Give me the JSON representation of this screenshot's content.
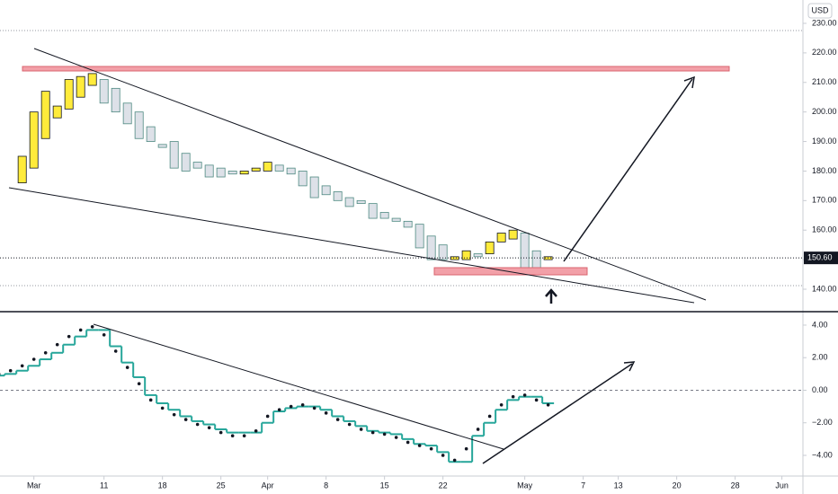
{
  "chart_data": [
    {
      "type": "candlestick",
      "currency": "USD",
      "x": [
        -1,
        0,
        1,
        2,
        3,
        4,
        5,
        6,
        7,
        8,
        9,
        10,
        11,
        12,
        13,
        14,
        15,
        16,
        17,
        18,
        19,
        20,
        21,
        22,
        23,
        24,
        25,
        26,
        27,
        28,
        29,
        30,
        31,
        32,
        33,
        34,
        35,
        36,
        37,
        38,
        39,
        40,
        41,
        42,
        43,
        44
      ],
      "open": [
        176,
        181,
        191,
        198,
        201,
        205,
        209,
        211,
        208,
        203,
        200,
        195,
        189,
        190,
        186,
        183,
        182,
        181,
        180,
        179,
        180,
        180,
        182,
        181,
        180,
        178,
        175,
        173,
        171,
        170,
        169,
        166,
        164,
        163,
        162,
        158,
        155,
        150,
        150,
        152,
        152,
        156,
        157,
        159,
        153,
        150
      ],
      "close": [
        185,
        200,
        207,
        202,
        211,
        212,
        213,
        203,
        200,
        196,
        191,
        190,
        188,
        181,
        180,
        181,
        178,
        178,
        179,
        180,
        181,
        183,
        180,
        179,
        175,
        171,
        172,
        170,
        168,
        169,
        164,
        164,
        163,
        161,
        154,
        150,
        150,
        151,
        153,
        151,
        156,
        159,
        160,
        147,
        147,
        151
      ],
      "up_color": "#ffeb3b",
      "down_color": "#4f8a82",
      "ylim": [
        132.4,
        237.9
      ],
      "yticks": [
        {
          "value": 140,
          "label": "140.00"
        },
        {
          "value": 150,
          "label": "150.00"
        },
        {
          "value": 160,
          "label": "160.00"
        },
        {
          "value": 170,
          "label": "170.00"
        },
        {
          "value": 180,
          "label": "180.00"
        },
        {
          "value": 190,
          "label": "190.00"
        },
        {
          "value": 200,
          "label": "200.00"
        },
        {
          "value": 210,
          "label": "210.00"
        },
        {
          "value": 220,
          "label": "220.00"
        },
        {
          "value": 230,
          "label": "230.00"
        }
      ],
      "xlim": [
        -2.9,
        65.8
      ],
      "xticks": [
        {
          "value": 0,
          "label": "Mar"
        },
        {
          "value": 6,
          "label": "11"
        },
        {
          "value": 11,
          "label": "18"
        },
        {
          "value": 16,
          "label": "25"
        },
        {
          "value": 20,
          "label": "Apr"
        },
        {
          "value": 25,
          "label": "8"
        },
        {
          "value": 30,
          "label": "15"
        },
        {
          "value": 35,
          "label": "22"
        },
        {
          "value": 42,
          "label": "May"
        },
        {
          "value": 47,
          "label": "7"
        },
        {
          "value": 50,
          "label": "13"
        },
        {
          "value": 55,
          "label": "20"
        },
        {
          "value": 60,
          "label": "28"
        },
        {
          "value": 64,
          "label": "Jun"
        }
      ],
      "last_price": {
        "value": 150.6,
        "label": "150.60"
      }
    },
    {
      "type": "line",
      "x": [
        -3,
        -2,
        -1,
        0,
        1,
        2,
        3,
        4,
        5,
        6,
        7,
        8,
        9,
        10,
        11,
        12,
        13,
        14,
        15,
        16,
        17,
        18,
        19,
        20,
        21,
        22,
        23,
        24,
        25,
        26,
        27,
        28,
        29,
        30,
        31,
        32,
        33,
        34,
        35,
        36,
        37,
        38,
        39,
        40,
        41,
        42,
        43,
        44
      ],
      "values": [
        0.9,
        1.0,
        1.2,
        1.5,
        1.9,
        2.3,
        2.8,
        3.3,
        3.7,
        3.7,
        2.7,
        1.7,
        0.8,
        -0.3,
        -0.8,
        -1.2,
        -1.6,
        -1.9,
        -2.1,
        -2.4,
        -2.6,
        -2.6,
        -2.6,
        -2.0,
        -1.3,
        -1.1,
        -1.0,
        -1.0,
        -1.2,
        -1.6,
        -1.9,
        -2.2,
        -2.5,
        -2.6,
        -2.7,
        -3.0,
        -3.3,
        -3.4,
        -3.8,
        -4.4,
        -4.4,
        -2.8,
        -2.0,
        -1.2,
        -0.6,
        -0.4,
        -0.4,
        -0.8
      ],
      "signal": [
        1.0,
        1.2,
        1.5,
        1.9,
        2.3,
        2.8,
        3.3,
        3.7,
        3.9,
        3.4,
        2.4,
        1.4,
        0.4,
        -0.6,
        -1.1,
        -1.5,
        -1.8,
        -2.1,
        -2.3,
        -2.6,
        -2.8,
        -2.8,
        -2.5,
        -1.6,
        -1.2,
        -1.0,
        -0.9,
        -1.1,
        -1.4,
        -1.8,
        -2.1,
        -2.4,
        -2.6,
        -2.7,
        -2.9,
        -3.2,
        -3.4,
        -3.6,
        -4.0,
        -4.3,
        -3.6,
        -2.4,
        -1.6,
        -0.9,
        -0.4,
        -0.3,
        -0.6,
        -0.9
      ],
      "color": "#26a69a",
      "signal_color": "#131722",
      "ylim": [
        -5.27,
        4.77
      ],
      "yticks": [
        {
          "value": -4,
          "label": "−4.00"
        },
        {
          "value": -2,
          "label": "−2.00"
        },
        {
          "value": 0,
          "label": "0.00"
        },
        {
          "value": 2,
          "label": "2.00"
        },
        {
          "value": 4,
          "label": "4.00"
        }
      ]
    }
  ]
}
